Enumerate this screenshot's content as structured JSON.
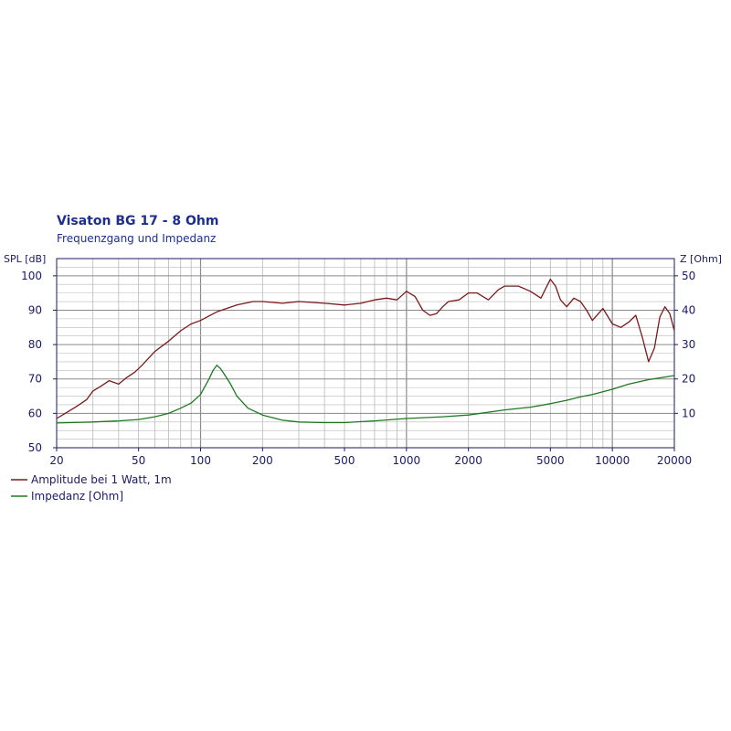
{
  "colors": {
    "amplitude": "#7a1a1a",
    "impedance": "#1e7a1e",
    "grid": "#b8b8b8",
    "grid_major": "#8a8a8a",
    "text": "#1a1a66",
    "title": "#1c2f8c"
  },
  "chart_data": {
    "type": "line",
    "title": "Visaton BG 17 - 8 Ohm",
    "subtitle": "Frequenzgang und Impedanz",
    "ylabel_left": "SPL [dB]",
    "ylabel_right": "Z [Ohm]",
    "x_scale": "log",
    "xlim": [
      20,
      20000
    ],
    "ylim_left": [
      50,
      105
    ],
    "ylim_right": [
      0,
      55
    ],
    "x_ticks": [
      "20",
      "50",
      "100",
      "200",
      "500",
      "1000",
      "2000",
      "5000",
      "10000",
      "20000"
    ],
    "y_ticks_left": [
      "50",
      "60",
      "70",
      "80",
      "90",
      "100"
    ],
    "y_ticks_right": [
      "10",
      "20",
      "30",
      "40",
      "50"
    ],
    "grid": true,
    "legend_placement": "bottom-left",
    "series": [
      {
        "name": "Amplitude bei 1 Watt, 1m",
        "axis": "left",
        "x": [
          20,
          22,
          25,
          28,
          30,
          33,
          36,
          40,
          44,
          48,
          52,
          60,
          70,
          80,
          90,
          100,
          120,
          150,
          180,
          200,
          250,
          300,
          400,
          500,
          600,
          700,
          800,
          900,
          1000,
          1100,
          1200,
          1300,
          1400,
          1500,
          1600,
          1800,
          2000,
          2200,
          2500,
          2800,
          3000,
          3500,
          4000,
          4500,
          5000,
          5300,
          5600,
          6000,
          6500,
          7000,
          7500,
          8000,
          9000,
          10000,
          11000,
          12000,
          13000,
          14000,
          15000,
          16000,
          17000,
          18000,
          19000,
          20000
        ],
        "values": [
          58.5,
          60,
          62,
          64,
          66.5,
          68,
          69.5,
          68.5,
          70.5,
          72,
          74,
          78,
          81,
          84,
          86,
          87,
          89.5,
          91.5,
          92.5,
          92.5,
          92,
          92.5,
          92,
          91.5,
          92,
          93,
          93.5,
          93,
          95.5,
          94,
          90,
          88.5,
          89,
          91,
          92.5,
          93,
          95,
          95,
          93,
          96,
          97,
          97,
          95.5,
          93.5,
          99,
          97,
          93,
          91,
          93.5,
          92.5,
          90,
          87,
          90.5,
          86,
          85,
          86.5,
          88.5,
          82,
          75,
          79,
          88,
          91,
          89,
          84
        ]
      },
      {
        "name": "Impedanz [Ohm]",
        "axis": "right",
        "x": [
          20,
          30,
          40,
          50,
          60,
          70,
          80,
          90,
          100,
          110,
          115,
          120,
          125,
          130,
          140,
          150,
          170,
          200,
          250,
          300,
          400,
          500,
          700,
          1000,
          1500,
          2000,
          3000,
          4000,
          5000,
          6000,
          7000,
          8000,
          10000,
          12000,
          15000,
          20000
        ],
        "values": [
          7.2,
          7.5,
          7.8,
          8.2,
          9,
          10,
          11.5,
          13,
          15.5,
          20,
          22.5,
          24,
          23,
          21.5,
          18.5,
          15,
          11.5,
          9.5,
          8,
          7.5,
          7.3,
          7.3,
          7.8,
          8.5,
          9,
          9.5,
          11,
          11.8,
          12.8,
          13.8,
          14.8,
          15.5,
          17,
          18.5,
          19.8,
          21
        ]
      }
    ]
  }
}
